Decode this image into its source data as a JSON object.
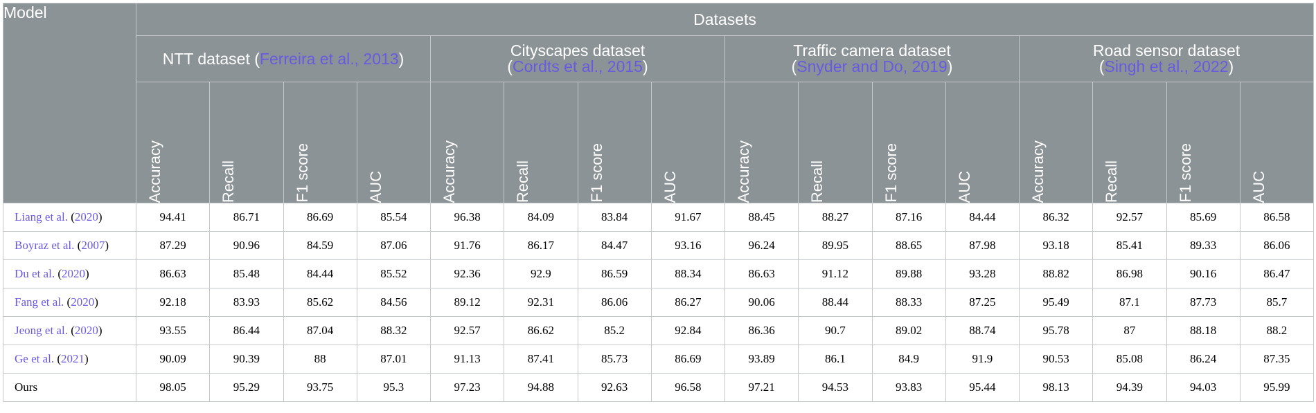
{
  "header": {
    "model_label": "Model",
    "datasets_label": "Datasets",
    "groups": [
      {
        "line1_pre": "NTT dataset (",
        "cite": "Ferreira et al., 2013",
        "post": ")"
      },
      {
        "line1": "Cityscapes dataset",
        "pre": "(",
        "cite": "Cordts et al., 2015",
        "post": ")"
      },
      {
        "line1": "Traffic camera dataset",
        "pre": "(",
        "cite": "Snyder and Do, 2019",
        "post": ")"
      },
      {
        "line1": "Road sensor dataset",
        "pre": "(",
        "cite": "Singh et al., 2022",
        "post": ")"
      }
    ],
    "metrics": [
      "Accuracy",
      "Recall",
      "F1 score",
      "AUC"
    ]
  },
  "rows": [
    {
      "name": "Liang et al. (",
      "year": "2020",
      "close": ")",
      "values": [
        "94.41",
        "86.71",
        "86.69",
        "85.54",
        "96.38",
        "84.09",
        "83.84",
        "91.67",
        "88.45",
        "88.27",
        "87.16",
        "84.44",
        "86.32",
        "92.57",
        "85.69",
        "86.58"
      ]
    },
    {
      "name": "Boyraz et al. (",
      "year": "2007",
      "close": ")",
      "values": [
        "87.29",
        "90.96",
        "84.59",
        "87.06",
        "91.76",
        "86.17",
        "84.47",
        "93.16",
        "96.24",
        "89.95",
        "88.65",
        "87.98",
        "93.18",
        "85.41",
        "89.33",
        "86.06"
      ]
    },
    {
      "name": "Du et al. (",
      "year": "2020",
      "close": ")",
      "values": [
        "86.63",
        "85.48",
        "84.44",
        "85.52",
        "92.36",
        "92.9",
        "86.59",
        "88.34",
        "86.63",
        "91.12",
        "89.88",
        "93.28",
        "88.82",
        "86.98",
        "90.16",
        "86.47"
      ]
    },
    {
      "name": "Fang et al. (",
      "year": "2020",
      "close": ")",
      "values": [
        "92.18",
        "83.93",
        "85.62",
        "84.56",
        "89.12",
        "92.31",
        "86.06",
        "86.27",
        "90.06",
        "88.44",
        "88.33",
        "87.25",
        "95.49",
        "87.1",
        "87.73",
        "85.7"
      ]
    },
    {
      "name": "Jeong et al. (",
      "year": "2020",
      "close": ")",
      "values": [
        "93.55",
        "86.44",
        "87.04",
        "88.32",
        "92.57",
        "86.62",
        "85.2",
        "92.84",
        "86.36",
        "90.7",
        "89.02",
        "88.74",
        "95.78",
        "87",
        "88.18",
        "88.2"
      ]
    },
    {
      "name": "Ge et al. (",
      "year": "2021",
      "close": ")",
      "values": [
        "90.09",
        "90.39",
        "88",
        "87.01",
        "91.13",
        "87.41",
        "85.73",
        "86.69",
        "93.89",
        "86.1",
        "84.9",
        "91.9",
        "90.53",
        "85.08",
        "86.24",
        "87.35"
      ]
    },
    {
      "name": "Ours",
      "year": "",
      "close": "",
      "values": [
        "98.05",
        "95.29",
        "93.75",
        "95.3",
        "97.23",
        "94.88",
        "92.63",
        "96.58",
        "97.21",
        "94.53",
        "93.83",
        "95.44",
        "98.13",
        "94.39",
        "94.03",
        "95.99"
      ]
    }
  ]
}
